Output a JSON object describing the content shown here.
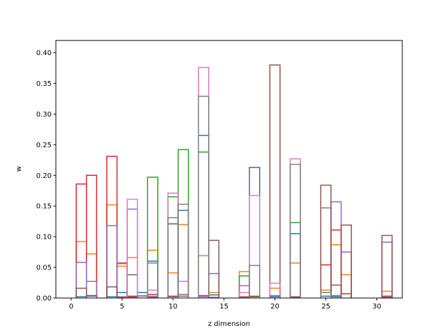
{
  "chart_data": {
    "type": "step",
    "title": "",
    "xlabel": "z dimension",
    "ylabel": "w",
    "xlim": [
      -1.5,
      32.5
    ],
    "ylim": [
      0,
      0.42
    ],
    "xticks": [
      0,
      5,
      10,
      15,
      20,
      25,
      30
    ],
    "xtick_labels": [
      "0",
      "5",
      "10",
      "15",
      "20",
      "25",
      "30"
    ],
    "yticks": [
      0.0,
      0.05,
      0.1,
      0.15,
      0.2,
      0.25,
      0.3,
      0.35,
      0.4
    ],
    "ytick_labels": [
      "0.00",
      "0.05",
      "0.10",
      "0.15",
      "0.20",
      "0.25",
      "0.30",
      "0.35",
      "0.40"
    ],
    "grid": false,
    "legend": "none",
    "bin_width": 1,
    "x": [
      0,
      1,
      2,
      3,
      4,
      5,
      6,
      7,
      8,
      9,
      10,
      11,
      12,
      13,
      14,
      15,
      16,
      17,
      18,
      19,
      20,
      21,
      22,
      23,
      24,
      25,
      26,
      27,
      28,
      29,
      30,
      31
    ],
    "series": [
      {
        "color": "#1f77b4",
        "values": [
          0,
          0.002,
          0.003,
          0,
          0.002,
          0.009,
          0.002,
          0.009,
          0.06,
          0,
          0.121,
          0.143,
          0,
          0.265,
          0.005,
          0,
          0,
          0,
          0.213,
          0,
          0.002,
          0,
          0.105,
          0,
          0,
          0.003,
          0.002,
          0,
          0,
          0,
          0,
          0.001
        ]
      },
      {
        "color": "#ff7f0e",
        "values": [
          0,
          0.092,
          0.072,
          0,
          0.152,
          0.052,
          0.066,
          0.003,
          0.078,
          0,
          0.041,
          0.12,
          0,
          0.069,
          0.009,
          0,
          0,
          0.043,
          0,
          0,
          0.016,
          0,
          0.057,
          0,
          0,
          0.013,
          0.087,
          0.038,
          0,
          0,
          0,
          0.011
        ]
      },
      {
        "color": "#2ca02c",
        "values": [
          0,
          0,
          0,
          0,
          0,
          0,
          0,
          0,
          0.197,
          0,
          0.165,
          0.242,
          0,
          0.238,
          0,
          0,
          0,
          0.036,
          0.003,
          0,
          0,
          0,
          0.123,
          0,
          0,
          0,
          0,
          0,
          0,
          0,
          0,
          0
        ]
      },
      {
        "color": "#d62728",
        "values": [
          0,
          0.186,
          0.2,
          0,
          0.231,
          0.057,
          0.003,
          0,
          0.001,
          0,
          0,
          0,
          0,
          0,
          0,
          0,
          0,
          0.002,
          0,
          0,
          0,
          0,
          0,
          0,
          0,
          0.054,
          0.111,
          0.007,
          0,
          0,
          0,
          0.003
        ]
      },
      {
        "color": "#9467bd",
        "values": [
          0,
          0.058,
          0.027,
          0,
          0.118,
          0.056,
          0.145,
          0,
          0.003,
          0,
          0.002,
          0.006,
          0,
          0.002,
          0.04,
          0,
          0,
          0.02,
          0,
          0,
          0,
          0,
          0.001,
          0,
          0,
          0.147,
          0.157,
          0.075,
          0,
          0,
          0,
          0.091
        ]
      },
      {
        "color": "#8c564b",
        "values": [
          0,
          0.016,
          0.004,
          0,
          0.018,
          0.002,
          0.038,
          0,
          0.006,
          0,
          0.003,
          0.003,
          0,
          0.004,
          0.094,
          0,
          0,
          0,
          0.002,
          0,
          0.38,
          0,
          0.002,
          0,
          0,
          0.184,
          0.021,
          0.119,
          0,
          0,
          0,
          0.102
        ]
      },
      {
        "color": "#e377c2",
        "values": [
          0,
          0,
          0,
          0,
          0,
          0.001,
          0.161,
          0.004,
          0.013,
          0,
          0.171,
          0.027,
          0,
          0.376,
          0.001,
          0,
          0,
          0.009,
          0.167,
          0,
          0.024,
          0,
          0.227,
          0,
          0,
          0,
          0,
          0,
          0,
          0,
          0,
          0
        ]
      },
      {
        "color": "#7f7f7f",
        "values": [
          0,
          0,
          0,
          0,
          0,
          0.001,
          0.001,
          0.003,
          0.057,
          0,
          0.131,
          0.153,
          0,
          0.329,
          0.001,
          0,
          0,
          0.001,
          0.053,
          0,
          0.004,
          0,
          0.218,
          0,
          0,
          0.009,
          0.004,
          0,
          0,
          0,
          0,
          0
        ]
      }
    ]
  }
}
